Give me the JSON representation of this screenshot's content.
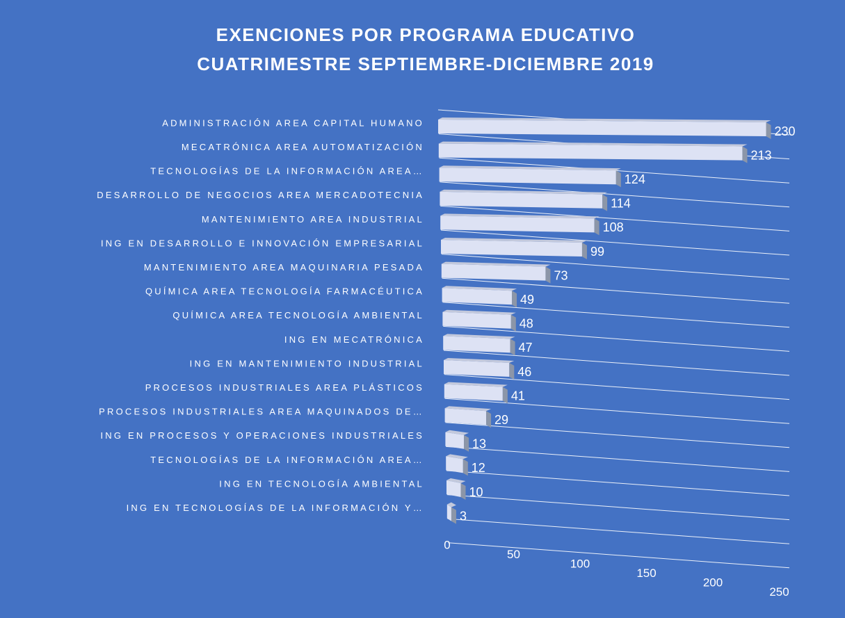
{
  "chart_data": {
    "type": "bar3d",
    "orientation": "horizontal",
    "title": "EXENCIONES POR PROGRAMA EDUCATIVO",
    "subtitle": "CUATRIMESTRE SEPTIEMBRE-DICIEMBRE 2019",
    "categories": [
      "ADMINISTRACIÓN AREA CAPITAL HUMANO",
      "MECATRÓNICA AREA AUTOMATIZACIÓN",
      "TECNOLOGÍAS DE LA INFORMACIÓN AREA…",
      "DESARROLLO DE NEGOCIOS AREA MERCADOTECNIA",
      "MANTENIMIENTO AREA INDUSTRIAL",
      "ING EN DESARROLLO E INNOVACIÓN EMPRESARIAL",
      "MANTENIMIENTO AREA MAQUINARIA PESADA",
      "QUÍMICA AREA TECNOLOGÍA FARMACÉUTICA",
      "QUÍMICA AREA TECNOLOGÍA AMBIENTAL",
      "ING EN MECATRÓNICA",
      "ING EN MANTENIMIENTO INDUSTRIAL",
      "PROCESOS INDUSTRIALES AREA PLÁSTICOS",
      "PROCESOS INDUSTRIALES AREA MAQUINADOS DE…",
      "ING EN PROCESOS Y OPERACIONES INDUSTRIALES",
      "TECNOLOGÍAS DE LA INFORMACIÓN AREA…",
      "ING EN TECNOLOGÍA AMBIENTAL",
      "ING EN TECNOLOGÍAS DE LA INFORMACIÓN Y…"
    ],
    "values": [
      230,
      213,
      124,
      114,
      108,
      99,
      73,
      49,
      48,
      47,
      46,
      41,
      29,
      13,
      12,
      10,
      3
    ],
    "color": "#dde2f4",
    "xlim": [
      0,
      250
    ],
    "xticks": [
      0,
      50,
      100,
      150,
      200,
      250
    ],
    "grid": true
  }
}
